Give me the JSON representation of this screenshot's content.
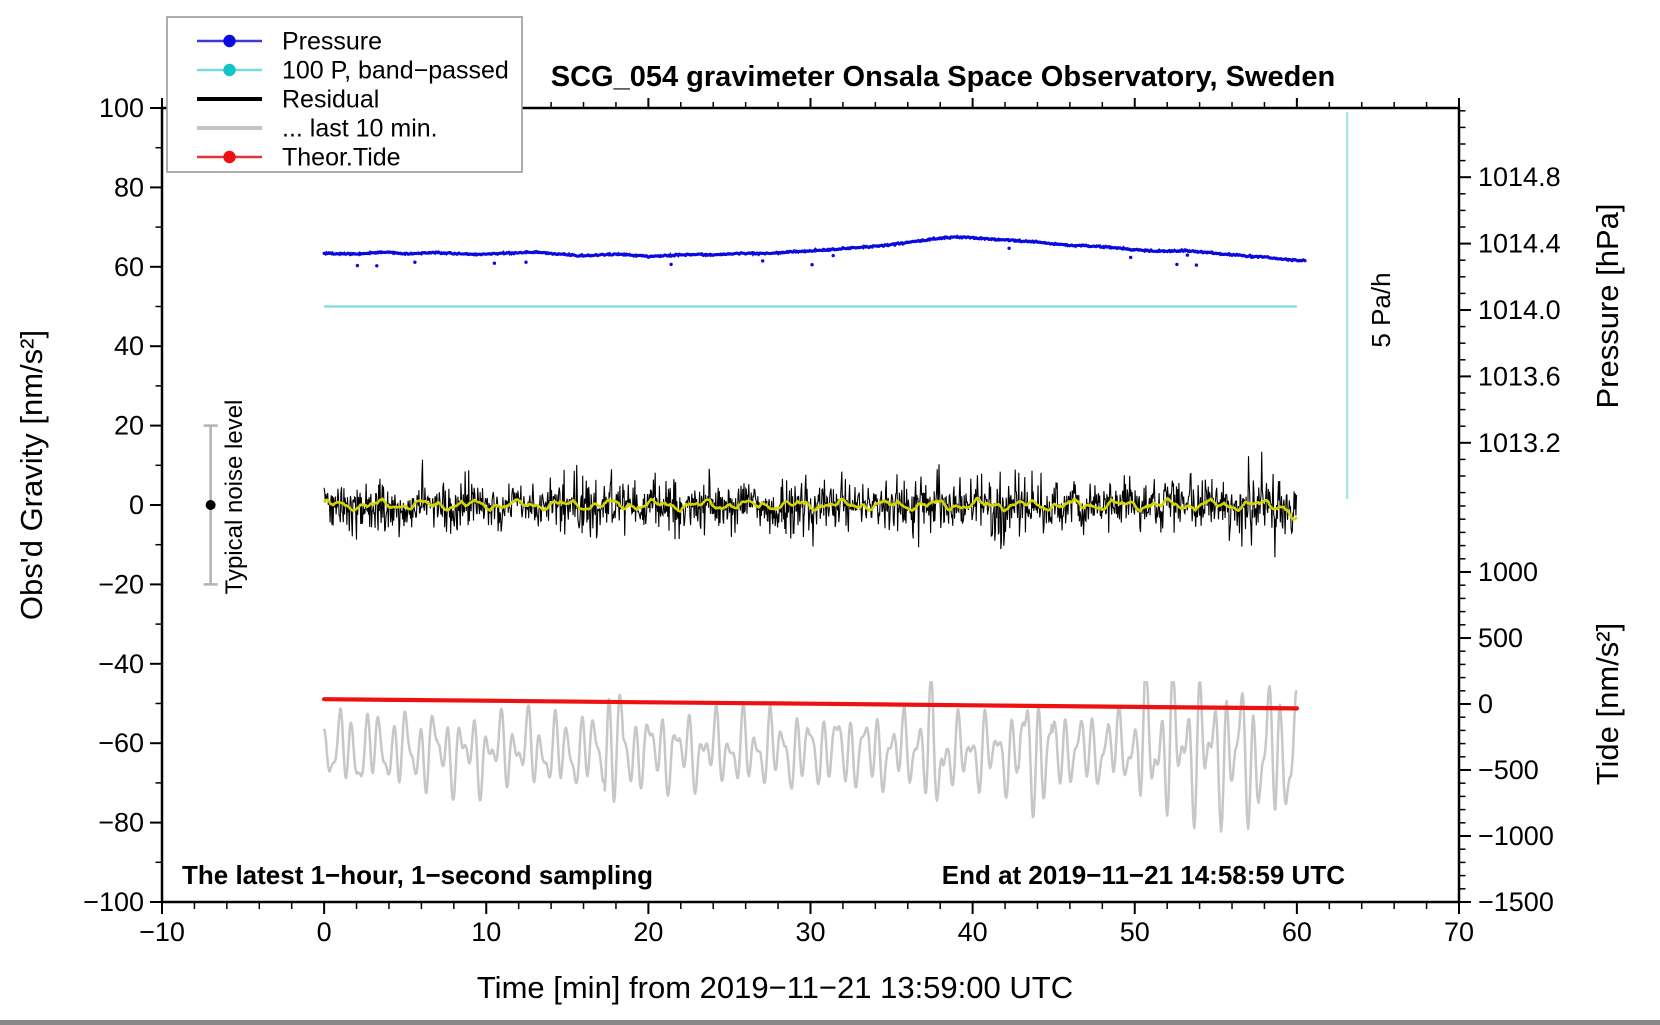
{
  "page": {
    "background": "#ffffff"
  },
  "chart_data": {
    "type": "line",
    "seed": 20191121,
    "title": "SCG_054 gravimeter Onsala Space Observatory, Sweden",
    "annotations": {
      "sampling": "The latest 1−hour, 1−second sampling",
      "end_time": "End at 2019−11−21 14:58:59 UTC"
    },
    "x_axis": {
      "label": "Time [min] from 2019−11−21 13:59:00 UTC",
      "min": -10,
      "max": 70,
      "major_ticks": [
        -10,
        0,
        10,
        20,
        30,
        40,
        50,
        60,
        70
      ],
      "tick_labels": [
        "−10",
        "0",
        "10",
        "20",
        "30",
        "40",
        "50",
        "60",
        "70"
      ],
      "minor_step": 2
    },
    "y_left": {
      "label": "Obs'd Gravity [nm/s²]",
      "min": -100,
      "max": 100,
      "major_ticks": [
        -100,
        -80,
        -60,
        -40,
        -20,
        0,
        20,
        40,
        60,
        80,
        100
      ],
      "tick_labels": [
        "−100",
        "−80",
        "−60",
        "−40",
        "−20",
        "0",
        "20",
        "40",
        "60",
        "80",
        "100"
      ],
      "minor_step": 10
    },
    "y_right_pressure": {
      "label": "Pressure [hPa]",
      "major_ticks": [
        1014.8,
        1014.4,
        1014.0,
        1013.6,
        1013.2
      ],
      "tick_labels": [
        "1014.8",
        "1014.4",
        "1014.0",
        "1013.6",
        "1013.2"
      ],
      "minor_step": 0.1,
      "range_hpa": [
        1012.8,
        1015.2
      ],
      "mapped_to_gravity_range": [
        0,
        100
      ]
    },
    "y_right_tide": {
      "label": "Tide [nm/s²]",
      "major_ticks": [
        1000,
        500,
        0,
        -500,
        -1000,
        -1500
      ],
      "tick_labels": [
        "1000",
        "500",
        "0",
        "−500",
        "−1000",
        "−1500"
      ],
      "minor_step": 100,
      "range_tide": [
        -1500,
        1500
      ],
      "mapped_to_gravity_range": [
        -100,
        0
      ]
    },
    "legend": {
      "items": [
        {
          "label": "Pressure",
          "line_color": "#3b3bdb",
          "line_width": 2.5,
          "marker": "dot",
          "marker_color": "#0a0ae0"
        },
        {
          "label": "100 P, band−passed",
          "line_color": "#7fd9d9",
          "line_width": 2.5,
          "marker": "dot",
          "marker_color": "#10c5c5"
        },
        {
          "label": "Residual",
          "line_color": "#000000",
          "line_width": 4,
          "marker": "none",
          "marker_color": ""
        },
        {
          "label": "... last 10 min.",
          "line_color": "#c4c4c4",
          "line_width": 4,
          "marker": "none",
          "marker_color": ""
        },
        {
          "label": "Theor.Tide",
          "line_color": "#e63333",
          "line_width": 2.5,
          "marker": "dot",
          "marker_color": "#ee1111"
        }
      ]
    },
    "series": [
      {
        "name": "Pressure",
        "axis": "pressure",
        "style": "dots",
        "color": "#0a0ae0",
        "x_start_min": 0,
        "x_end_min": 60.5,
        "sample_interval_min": 1,
        "values_hpa": [
          1014.342,
          1014.339,
          1014.337,
          1014.344,
          1014.349,
          1014.339,
          1014.342,
          1014.347,
          1014.339,
          1014.334,
          1014.337,
          1014.342,
          1014.344,
          1014.349,
          1014.342,
          1014.332,
          1014.327,
          1014.332,
          1014.337,
          1014.33,
          1014.323,
          1014.327,
          1014.332,
          1014.334,
          1014.332,
          1014.337,
          1014.342,
          1014.339,
          1014.344,
          1014.351,
          1014.356,
          1014.363,
          1014.37,
          1014.377,
          1014.385,
          1014.394,
          1014.406,
          1014.42,
          1014.432,
          1014.44,
          1014.435,
          1014.428,
          1014.423,
          1014.416,
          1014.409,
          1014.399,
          1014.389,
          1014.387,
          1014.382,
          1014.373,
          1014.363,
          1014.356,
          1014.354,
          1014.358,
          1014.351,
          1014.342,
          1014.332,
          1014.325,
          1014.318,
          1014.308,
          1014.299
        ],
        "dot_jitter_hpa": 0.006
      },
      {
        "name": "100 P, band−passed",
        "axis": "gravity",
        "style": "line",
        "color": "#7fd9d9",
        "x_range_min": [
          0,
          60
        ],
        "value_gravity": 50,
        "equivalent_pressure_hpa": 1014.0
      },
      {
        "name": "Residual",
        "axis": "gravity",
        "style": "noise-line",
        "color": "#000000",
        "mean": 0,
        "sampling": "1 s",
        "envelope_anchor_interval_min": 5,
        "envelope_amplitudes": [
          8,
          8.5,
          8,
          9,
          9.5,
          8,
          8.5,
          8,
          9,
          8,
          8.5,
          10,
          11.5
        ],
        "max_spike": 22
      },
      {
        "name": "Residual low−pass (smoothed)",
        "axis": "gravity",
        "style": "line",
        "color": "#d4d400",
        "mean": 0,
        "amplitude": 1.3,
        "end_dip": -3
      },
      {
        "name": "... last 10 min.",
        "axis": "tide",
        "style": "noise-line",
        "color": "#c7c7c7",
        "mean_tide": -352,
        "typical_swing_tide": 250,
        "late_swing_tide": 620,
        "period_s": 50,
        "burst_windows_min": [
          [
            17.3,
            18.4
          ],
          [
            36.6,
            38.4
          ],
          [
            42.8,
            44.9
          ],
          [
            50.2,
            60
          ]
        ]
      },
      {
        "name": "Theor.Tide",
        "axis": "tide",
        "style": "line",
        "color": "#ee1111",
        "x_min": [
          0,
          10,
          20,
          30,
          40,
          50,
          60
        ],
        "values_tide": [
          36,
          25,
          13,
          2,
          -10,
          -22,
          -33
        ]
      }
    ],
    "markers": {
      "noise_bar": {
        "label": "Typical noise level",
        "x_min": -7,
        "center_gravity": 0,
        "half_range_gravity": 20,
        "bar_color": "#b5b5b5",
        "dot_color": "#000000"
      },
      "rate_line": {
        "label": "5 Pa/h",
        "x_min": 63.1,
        "gravity_range": [
          1.5,
          99
        ],
        "color": "#a9e4e4"
      }
    }
  }
}
